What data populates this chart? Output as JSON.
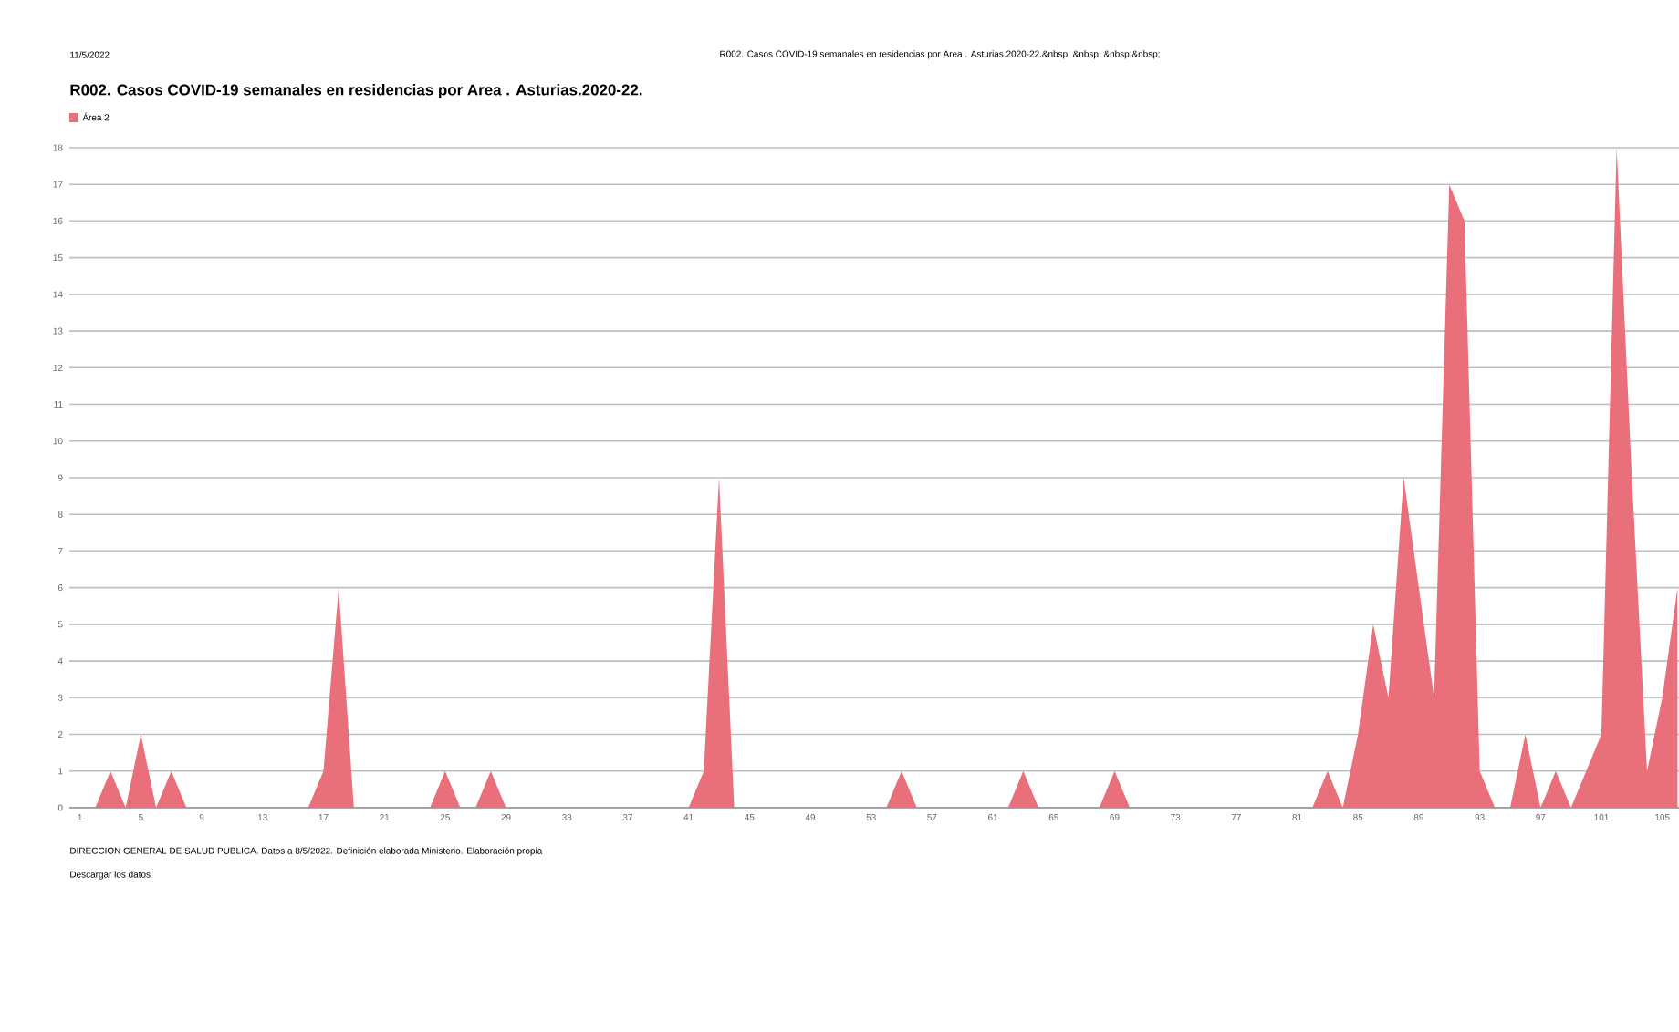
{
  "chart_data": {
    "type": "area",
    "title": "R002. Casos COVID-19 semanales en residencias por Area . Asturias.2020-22.",
    "subtitle": "R002. Casos COVID-19 semanales en residencias por Area . Asturias.2020-22.&nbsp; &nbsp; &nbsp;&nbsp;",
    "annotations": [
      "11/5/2022",
      "DIRECCION GENERAL DE SALUD PUBLICA. Datos a 8/5/2022. Definición elaborada Ministerio. Elaboración propia",
      "Descargar los datos"
    ],
    "x": [
      1,
      2,
      3,
      4,
      5,
      6,
      7,
      8,
      9,
      10,
      11,
      12,
      13,
      14,
      15,
      16,
      17,
      18,
      19,
      20,
      21,
      22,
      23,
      24,
      25,
      26,
      27,
      28,
      29,
      30,
      31,
      32,
      33,
      34,
      35,
      36,
      37,
      38,
      39,
      40,
      41,
      42,
      43,
      44,
      45,
      46,
      47,
      48,
      49,
      50,
      51,
      52,
      53,
      54,
      55,
      56,
      57,
      58,
      59,
      60,
      61,
      62,
      63,
      64,
      65,
      66,
      67,
      68,
      69,
      70,
      71,
      72,
      73,
      74,
      75,
      76,
      77,
      78,
      79,
      80,
      81,
      82,
      83,
      84,
      85,
      86,
      87,
      88,
      89,
      90,
      91,
      92,
      93,
      94,
      95,
      96,
      97,
      98,
      99,
      100,
      101,
      102,
      103,
      104,
      105,
      106
    ],
    "series": [
      {
        "name": "Área 2",
        "color": "#e96f7b",
        "values": [
          0,
          0,
          1,
          0,
          2,
          0,
          1,
          0,
          0,
          0,
          0,
          0,
          0,
          0,
          0,
          0,
          1,
          6,
          0,
          0,
          0,
          0,
          0,
          0,
          1,
          0,
          0,
          1,
          0,
          0,
          0,
          0,
          0,
          0,
          0,
          0,
          0,
          0,
          0,
          0,
          0,
          1,
          9,
          0,
          0,
          0,
          0,
          0,
          0,
          0,
          0,
          0,
          0,
          0,
          1,
          0,
          0,
          0,
          0,
          0,
          0,
          0,
          1,
          0,
          0,
          0,
          0,
          0,
          1,
          0,
          0,
          0,
          0,
          0,
          0,
          0,
          0,
          0,
          0,
          0,
          0,
          0,
          1,
          0,
          2,
          5,
          3,
          9,
          6,
          3,
          17,
          16,
          1,
          0,
          0,
          2,
          0,
          1,
          0,
          1,
          2,
          18,
          9,
          1,
          3,
          6
        ]
      }
    ],
    "xlim": [
      0.3,
      106.1
    ],
    "xticks": [
      1,
      5,
      9,
      13,
      17,
      21,
      25,
      29,
      33,
      37,
      41,
      45,
      49,
      53,
      57,
      61,
      65,
      69,
      73,
      77,
      81,
      85,
      89,
      93,
      97,
      101,
      105
    ],
    "ylim": [
      0,
      18
    ],
    "yticks": [
      0,
      1,
      2,
      3,
      4,
      5,
      6,
      7,
      8,
      9,
      10,
      11,
      12,
      13,
      14,
      15,
      16,
      17,
      18
    ],
    "grid": "y",
    "legend": "top left"
  }
}
